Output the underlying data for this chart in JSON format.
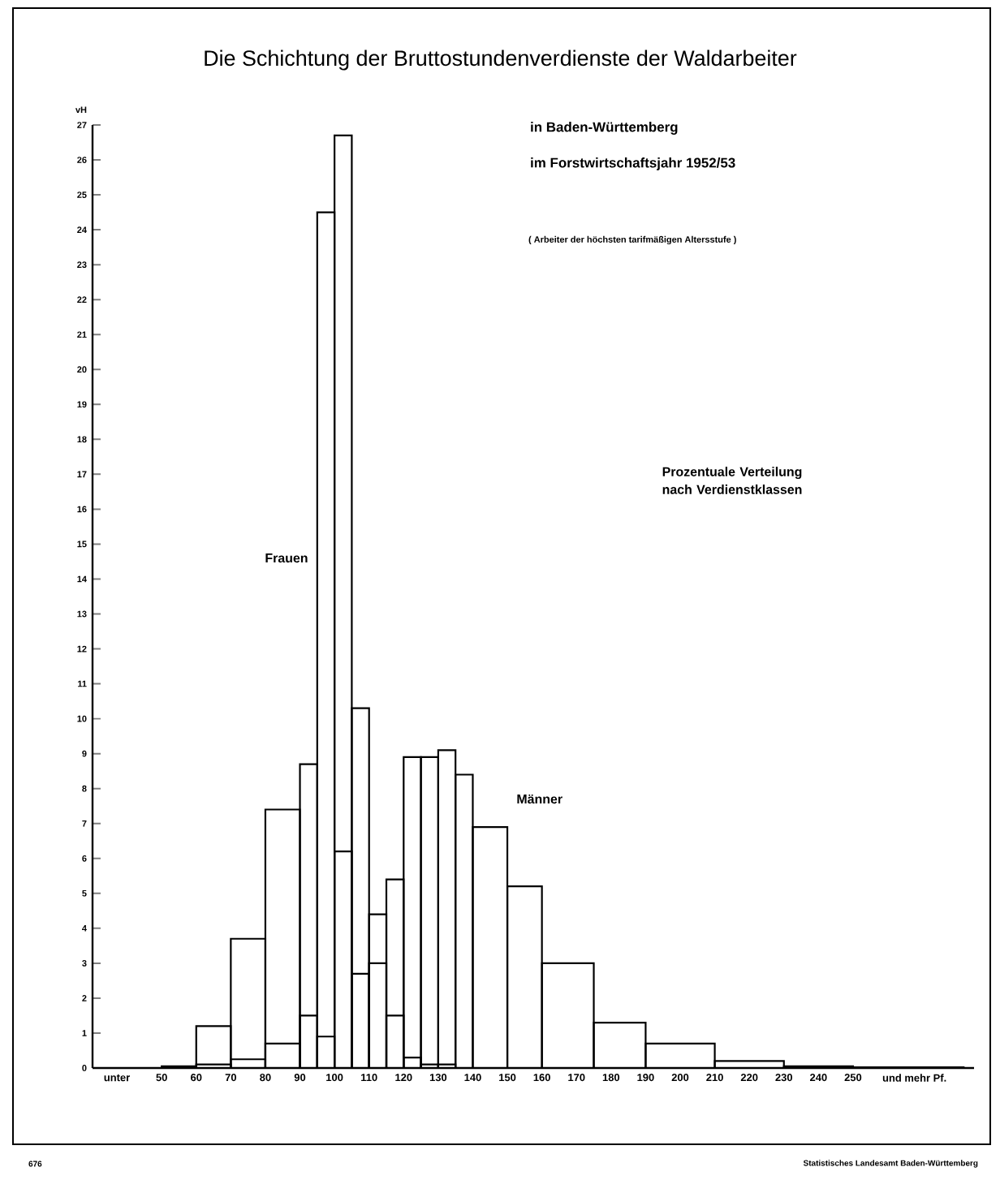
{
  "chart_data": {
    "type": "histogram",
    "title": "Die Schichtung der Bruttostundenverdienste der Waldarbeiter",
    "subtitle": "in Baden-Württemberg",
    "ylabel": "vH",
    "annotations": [
      "im Forstwirtschaftsjahr 1952/53",
      "( Arbeiter der höchsten tarifmäßigen Altersstufe )",
      "Prozentuale Verteilung nach Verdienstklassen",
      "unter",
      "und mehr Pf.",
      "676",
      "Statistisches Landesamt Baden-Württemberg"
    ],
    "series": [
      {
        "name": "Frauen",
        "color": "#000000",
        "values": [
          null,
          1.2,
          3.7,
          7.4,
          8.7,
          24.5,
          26.7,
          10.3,
          3.0,
          1.5,
          0.3,
          0.1,
          0.1,
          null,
          null,
          null,
          null,
          null,
          null,
          null,
          null,
          null
        ]
      },
      {
        "name": "Männer",
        "color": "#000000",
        "values": [
          0.05,
          0.1,
          0.25,
          0.7,
          1.5,
          0.9,
          6.2,
          2.7,
          4.4,
          5.4,
          8.9,
          8.9,
          9.1,
          8.4,
          6.9,
          5.2,
          3.0,
          1.3,
          0.7,
          0.2,
          0.05,
          0.02
        ]
      }
    ],
    "bins": [
      50,
      60,
      70,
      80,
      90,
      95,
      100,
      105,
      110,
      115,
      120,
      125,
      130,
      135,
      140,
      150,
      160,
      175,
      190,
      210,
      230,
      250,
      282
    ],
    "xlim": [
      30,
      285
    ],
    "ylim": [
      0,
      27
    ],
    "xticks": [
      50,
      60,
      70,
      80,
      90,
      100,
      110,
      120,
      130,
      140,
      150,
      160,
      170,
      180,
      190,
      200,
      210,
      220,
      230,
      240,
      250
    ],
    "yticks": [
      0,
      1,
      2,
      3,
      4,
      5,
      6,
      7,
      8,
      9,
      10,
      11,
      12,
      13,
      14,
      15,
      16,
      17,
      18,
      19,
      20,
      21,
      22,
      23,
      24,
      25,
      26,
      27
    ],
    "grid": false
  }
}
